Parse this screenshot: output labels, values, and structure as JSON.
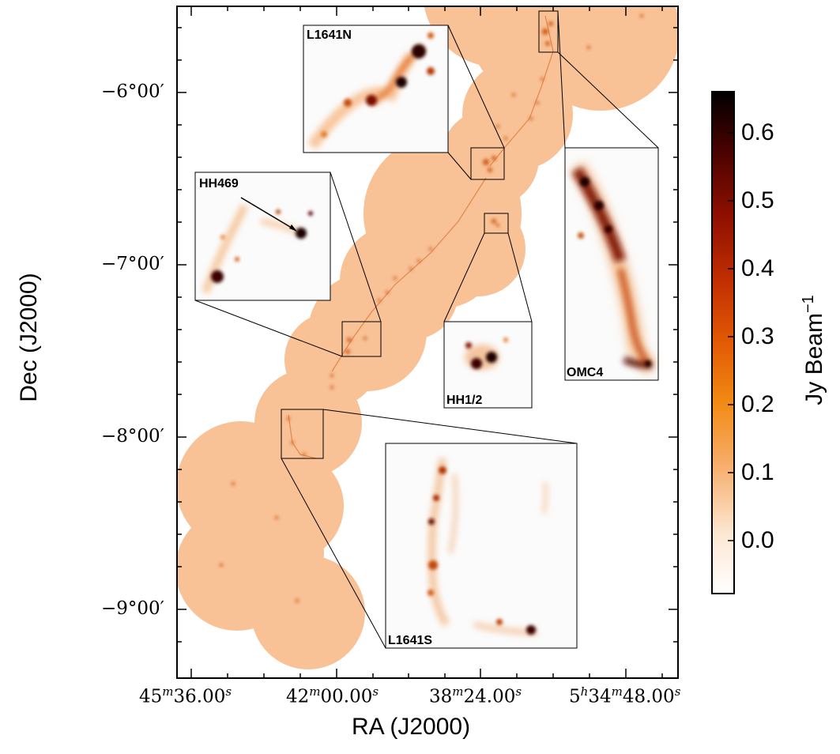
{
  "figure": {
    "xlabel": "RA (J2000)",
    "ylabel": "Dec (J2000)",
    "colorbar_label_main": "Jy Beam",
    "colorbar_label_exp": "−1",
    "colormap": "gist_heat_r",
    "map_tint": "#f8c196",
    "x_tick_labels": [
      {
        "base": "45",
        "sup1": "m",
        "mid": "36.00",
        "sup2": "s",
        "pre": "",
        "presup": ""
      },
      {
        "base": "42",
        "sup1": "m",
        "mid": "00.00",
        "sup2": "s",
        "pre": "",
        "presup": ""
      },
      {
        "base": "38",
        "sup1": "m",
        "mid": "24.00",
        "sup2": "s",
        "pre": "",
        "presup": ""
      },
      {
        "base": "5",
        "sup1": "h",
        "mid": "34",
        "sup2": "m",
        "pre": "",
        "presup": "",
        "tail": "48.00",
        "tailsup": "s"
      }
    ],
    "y_tick_labels": [
      "−6°00′",
      "−7°00′",
      "−8°00′",
      "−9°00′"
    ],
    "colorbar_ticks": [
      "0.6",
      "0.5",
      "0.4",
      "0.3",
      "0.2",
      "0.1",
      "0.0"
    ],
    "colorbar_range": [
      -0.08,
      0.66
    ],
    "insets": [
      {
        "name": "L1641N",
        "label": "L1641N"
      },
      {
        "name": "HH469",
        "label": "HH469"
      },
      {
        "name": "HH1/2",
        "label": "HH1/2"
      },
      {
        "name": "OMC4",
        "label": "OMC4"
      },
      {
        "name": "L1641S",
        "label": "L1641S"
      }
    ]
  }
}
